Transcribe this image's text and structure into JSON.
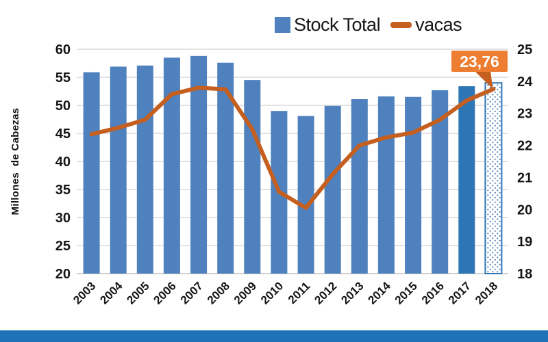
{
  "chart_data": {
    "type": "bar",
    "subtype": "combo-bar-line-dual-axis",
    "categories": [
      "2003",
      "2004",
      "2005",
      "2006",
      "2007",
      "2008",
      "2009",
      "2010",
      "2011",
      "2012",
      "2013",
      "2014",
      "2015",
      "2016",
      "2017",
      "2018"
    ],
    "series": [
      {
        "name": "Stock Total",
        "type": "bar",
        "axis": "left",
        "values": [
          55.9,
          56.9,
          57.1,
          58.5,
          58.8,
          57.6,
          54.5,
          49.0,
          48.1,
          49.9,
          51.1,
          51.6,
          51.5,
          52.7,
          53.4,
          54.0
        ]
      },
      {
        "name": "vacas",
        "type": "line",
        "axis": "right",
        "values": [
          22.35,
          22.55,
          22.8,
          23.6,
          23.8,
          23.75,
          22.5,
          20.55,
          20.05,
          21.1,
          22.0,
          22.25,
          22.4,
          22.8,
          23.4,
          23.76
        ]
      }
    ],
    "left_axis": {
      "title": "Millones  de Cabezas",
      "min": 20,
      "max": 60,
      "step": 5,
      "ticks": [
        "60",
        "55",
        "50",
        "45",
        "40",
        "35",
        "30",
        "25",
        "20"
      ]
    },
    "right_axis": {
      "min": 18,
      "max": 25,
      "step": 1,
      "ticks": [
        "25",
        "24",
        "23",
        "22",
        "21",
        "20",
        "19",
        "18"
      ]
    },
    "legend": {
      "position": "top",
      "items": [
        {
          "label": "Stock Total",
          "swatch": "square",
          "color": "#4E81BD"
        },
        {
          "label": "vacas",
          "swatch": "dash",
          "color": "#C55F1F"
        }
      ]
    },
    "annotation": {
      "label": "23,76",
      "value": 23.76,
      "category": "2018",
      "box_color": "#ED7D31",
      "text_color": "#FFFFFF"
    },
    "highlights": {
      "darker_bar_category": "2017",
      "dotted_bar_category": "2018"
    },
    "grid": true,
    "colors": {
      "bar": "#4E81BD",
      "bar_dark": "#2E75B6",
      "bar_dotted_fill": "#FFFFFF",
      "bar_dotted_dot": "#4E81BD",
      "line": "#C55F1F",
      "gridline": "#D9D9D9",
      "baseline": "#BFBFBF",
      "axis_text": "#161616",
      "footer": "#1F72B8",
      "background": "#FFFFFF"
    }
  }
}
